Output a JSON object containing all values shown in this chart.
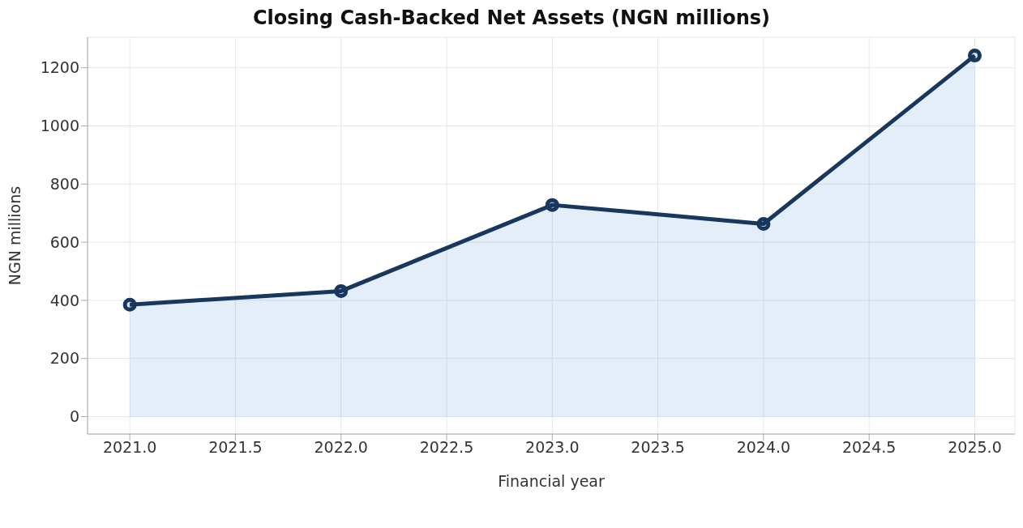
{
  "chart_data": {
    "type": "area",
    "title": "Closing Cash-Backed Net Assets (NGN millions)",
    "xlabel": "Financial year",
    "ylabel": "NGN millions",
    "x": [
      2021,
      2022,
      2023,
      2024,
      2025
    ],
    "series": [
      {
        "color": "#17375e",
        "values": [
          385,
          432,
          728,
          663,
          1242
        ]
      }
    ],
    "xlim": [
      2020.8,
      2025.19
    ],
    "xticks": [
      {
        "value": 2021,
        "label": "2021.0"
      },
      {
        "value": 2021.5,
        "label": "2021.5"
      },
      {
        "value": 2022,
        "label": "2022.0"
      },
      {
        "value": 2022.5,
        "label": "2022.5"
      },
      {
        "value": 2023,
        "label": "2023.0"
      },
      {
        "value": 2023.5,
        "label": "2023.5"
      },
      {
        "value": 2024,
        "label": "2024.0"
      },
      {
        "value": 2024.5,
        "label": "2024.5"
      },
      {
        "value": 2025,
        "label": "2025.0"
      }
    ],
    "ylim": [
      -60,
      1305
    ],
    "yticks": [
      0,
      200,
      400,
      600,
      800,
      1000,
      1200
    ],
    "grid": true,
    "marker": "circle",
    "line_style": "solid"
  }
}
